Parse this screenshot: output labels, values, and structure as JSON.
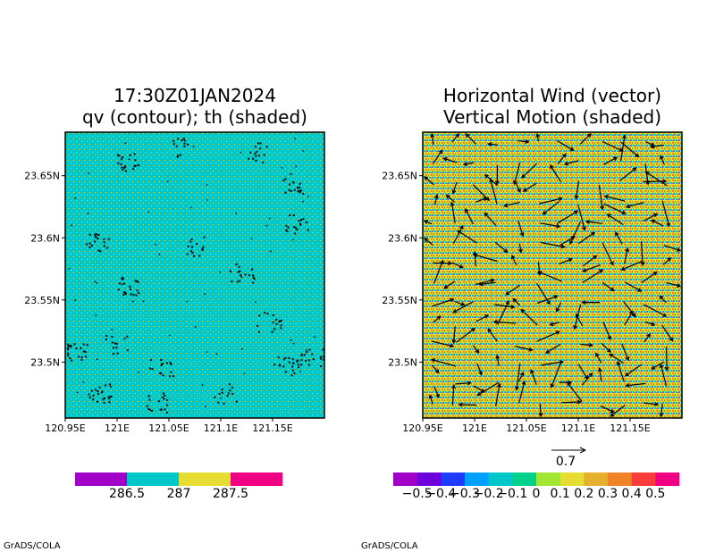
{
  "credits": [
    "GrADS/COLA",
    "GrADS/COLA"
  ],
  "colors": {
    "th_background": "#00c8c8",
    "th_speckle": "#e6dc32",
    "th_cool": "#a000c8",
    "th_warm": "#f00082",
    "contour": "#000000",
    "wind_arrow": "#000000"
  },
  "chart_data": [
    {
      "type": "heatmap",
      "title": [
        "17:30Z01JAN2024",
        "qv (contour); th (shaded)"
      ],
      "xlabel": "",
      "ylabel": "",
      "x_range": [
        120.95,
        121.2
      ],
      "y_range": [
        23.455,
        23.685
      ],
      "x_ticks": [
        {
          "value": 120.95,
          "label": "120.95E"
        },
        {
          "value": 121.0,
          "label": "121E"
        },
        {
          "value": 121.05,
          "label": "121.05E"
        },
        {
          "value": 121.1,
          "label": "121.1E"
        },
        {
          "value": 121.15,
          "label": "121.15E"
        }
      ],
      "y_ticks": [
        {
          "value": 23.5,
          "label": "23.5N"
        },
        {
          "value": 23.55,
          "label": "23.55N"
        },
        {
          "value": 23.6,
          "label": "23.6N"
        },
        {
          "value": 23.65,
          "label": "23.65N"
        }
      ],
      "colorbar": {
        "colors": [
          "#a000c8",
          "#00c8c8",
          "#e6dc32",
          "#f00082"
        ],
        "labels": [
          "286.5",
          "287",
          "287.5"
        ]
      },
      "dominant_value_range": [
        286.5,
        287
      ],
      "grid": false
    },
    {
      "type": "heatmap",
      "title": [
        "Horizontal Wind (vector)",
        "Vertical Motion (shaded)"
      ],
      "xlabel": "",
      "ylabel": "",
      "x_range": [
        120.95,
        121.2
      ],
      "y_range": [
        23.455,
        23.685
      ],
      "x_ticks": [
        {
          "value": 120.95,
          "label": "120.95E"
        },
        {
          "value": 121.0,
          "label": "121E"
        },
        {
          "value": 121.05,
          "label": "121.05E"
        },
        {
          "value": 121.1,
          "label": "121.1E"
        },
        {
          "value": 121.15,
          "label": "121.15E"
        }
      ],
      "y_ticks": [
        {
          "value": 23.5,
          "label": "23.5N"
        },
        {
          "value": 23.55,
          "label": "23.55N"
        },
        {
          "value": 23.6,
          "label": "23.6N"
        },
        {
          "value": 23.65,
          "label": "23.65N"
        }
      ],
      "vector_reference": {
        "value": 0.7,
        "label": "0.7"
      },
      "colorbar": {
        "colors": [
          "#a000c8",
          "#6e00dc",
          "#1e3cff",
          "#00a0ff",
          "#00c8c8",
          "#00d28c",
          "#a0e632",
          "#e6dc32",
          "#e6af2d",
          "#f08228",
          "#fa3c3c",
          "#f00082"
        ],
        "labels": [
          "−0.5",
          "−0.4",
          "−0.3",
          "−0.2",
          "−0.1",
          "0",
          "0.1",
          "0.2",
          "0.3",
          "0.4",
          "0.5"
        ]
      },
      "grid": false
    }
  ]
}
